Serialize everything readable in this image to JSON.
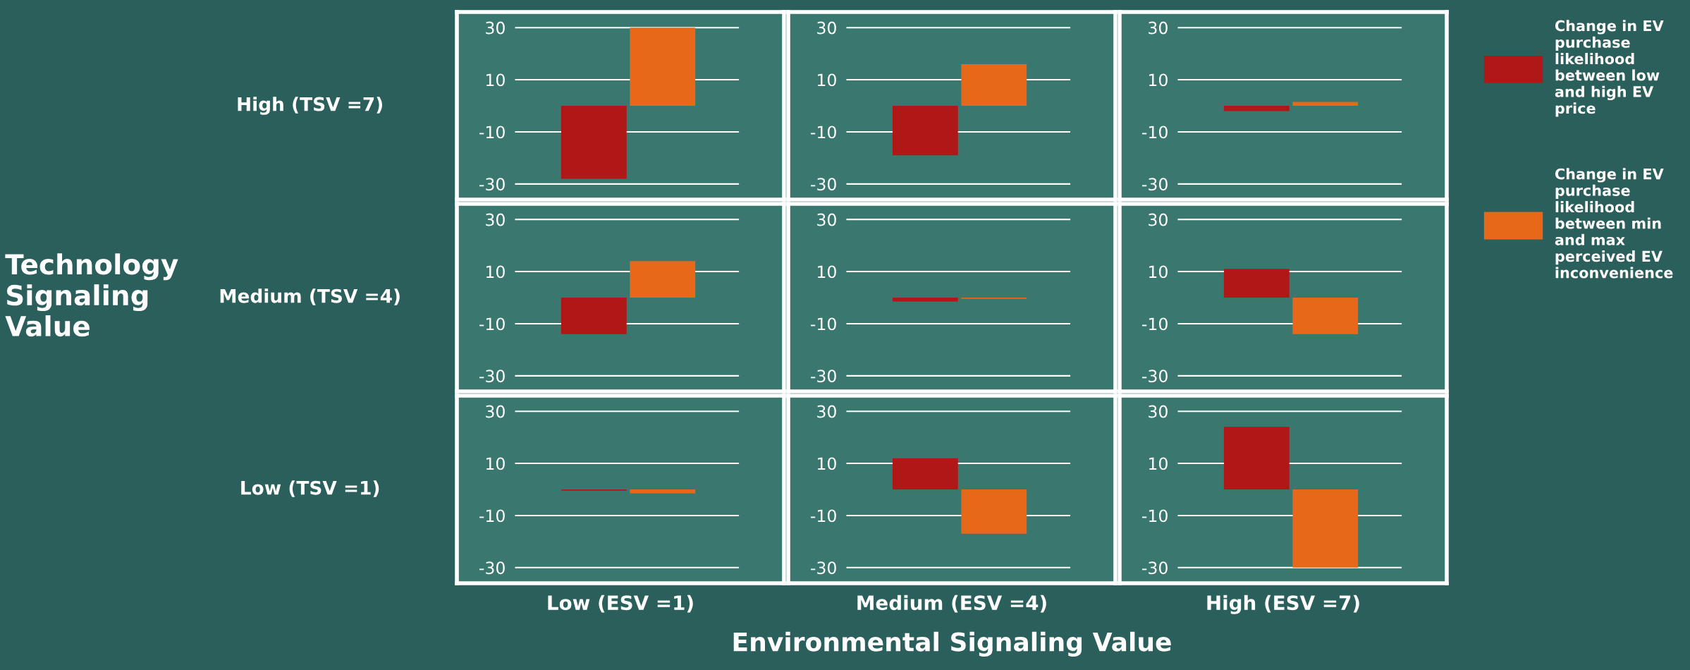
{
  "chart_data": [
    {
      "type": "bar",
      "categories": [
        null
      ],
      "ylabel": "High (TSV =7)",
      "ylim": [
        -36,
        36
      ],
      "yticks": [
        30,
        10,
        -10,
        -30
      ],
      "grid": "y",
      "legend": "right",
      "tick_labels": "y",
      "series": [
        {
          "name": "Change in EV\npurchase\nlikelihood\nbetween low\nand high EV\nprice",
          "color": "#b01818",
          "values": [
            -28
          ]
        },
        {
          "name": "Change in EV\npurchase\nlikelihood\nbetween min\nand max\nperceived EV\ninconvenience",
          "color": "#e8681a",
          "values": [
            30
          ]
        }
      ]
    },
    {
      "type": "bar",
      "categories": [
        null
      ],
      "ylim": [
        -36,
        36
      ],
      "yticks": [
        30,
        10,
        -10,
        -30
      ],
      "grid": "y",
      "tick_labels": "y",
      "series": [
        {
          "color": "#b01818",
          "values": [
            -19
          ]
        },
        {
          "color": "#e8681a",
          "values": [
            16
          ]
        }
      ]
    },
    {
      "type": "bar",
      "categories": [
        null
      ],
      "ylim": [
        -36,
        36
      ],
      "yticks": [
        30,
        10,
        -10,
        -30
      ],
      "grid": "y",
      "tick_labels": "y",
      "series": [
        {
          "color": "#b01818",
          "values": [
            -2
          ]
        },
        {
          "color": "#e8681a",
          "values": [
            1.5
          ]
        }
      ]
    },
    {
      "type": "bar",
      "categories": [
        null
      ],
      "ylabel": "Medium (TSV =4)",
      "annotations": [
        "Technology\nSignaling\nValue"
      ],
      "ylim": [
        -36,
        36
      ],
      "yticks": [
        30,
        10,
        -10,
        -30
      ],
      "grid": "y",
      "tick_labels": "y",
      "series": [
        {
          "color": "#b01818",
          "values": [
            -14
          ]
        },
        {
          "color": "#e8681a",
          "values": [
            14
          ]
        }
      ]
    },
    {
      "type": "bar",
      "categories": [
        null
      ],
      "ylim": [
        -36,
        36
      ],
      "yticks": [
        30,
        10,
        -10,
        -30
      ],
      "grid": "y",
      "tick_labels": "y",
      "series": [
        {
          "color": "#b01818",
          "values": [
            -1.5
          ]
        },
        {
          "color": "#e8681a",
          "values": [
            -0.5
          ]
        }
      ]
    },
    {
      "type": "bar",
      "categories": [
        null
      ],
      "ylim": [
        -36,
        36
      ],
      "yticks": [
        30,
        10,
        -10,
        -30
      ],
      "grid": "y",
      "tick_labels": "y",
      "series": [
        {
          "color": "#b01818",
          "values": [
            11
          ]
        },
        {
          "color": "#e8681a",
          "values": [
            -14
          ]
        }
      ]
    },
    {
      "type": "bar",
      "categories": [
        null
      ],
      "ylabel": "Low (TSV =1)",
      "xlabel": "Low (ESV =1)",
      "ylim": [
        -36,
        36
      ],
      "yticks": [
        30,
        10,
        -10,
        -30
      ],
      "grid": "y",
      "tick_labels": "y",
      "series": [
        {
          "color": "#b01818",
          "values": [
            -0.5
          ]
        },
        {
          "color": "#e8681a",
          "values": [
            -1.5
          ]
        }
      ]
    },
    {
      "type": "bar",
      "categories": [
        null
      ],
      "xlabel": "Medium (ESV =4)",
      "annotations": [
        "Environmental Signaling Value"
      ],
      "ylim": [
        -36,
        36
      ],
      "yticks": [
        30,
        10,
        -10,
        -30
      ],
      "grid": "y",
      "tick_labels": "y",
      "series": [
        {
          "color": "#b01818",
          "values": [
            12
          ]
        },
        {
          "color": "#e8681a",
          "values": [
            -17
          ]
        }
      ]
    },
    {
      "type": "bar",
      "categories": [
        null
      ],
      "xlabel": "High (ESV =7)",
      "ylim": [
        -36,
        36
      ],
      "yticks": [
        30,
        10,
        -10,
        -30
      ],
      "grid": "y",
      "tick_labels": "y",
      "series": [
        {
          "color": "#b01818",
          "values": [
            24
          ]
        },
        {
          "color": "#e8681a",
          "values": [
            -30
          ]
        }
      ]
    }
  ]
}
